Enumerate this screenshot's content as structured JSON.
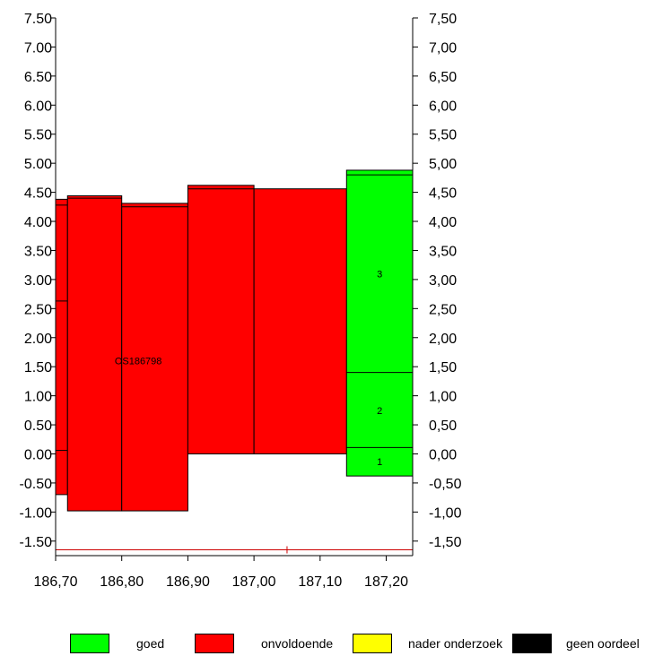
{
  "chart_data": {
    "type": "bar",
    "title": "",
    "xlabel": "",
    "ylabel": "",
    "xlim": [
      186.7,
      187.24
    ],
    "ylim": [
      -1.75,
      7.5
    ],
    "x_ticks": [
      186.7,
      186.8,
      186.9,
      187.0,
      187.1,
      187.2
    ],
    "x_tick_labels": [
      "186,70",
      "186,80",
      "186,90",
      "187,00",
      "187,10",
      "187,20"
    ],
    "y_ticks": [
      -1.5,
      -1.0,
      -0.5,
      0.0,
      0.5,
      1.0,
      1.5,
      2.0,
      2.5,
      3.0,
      3.5,
      4.0,
      4.5,
      5.0,
      5.5,
      6.0,
      6.5,
      7.0,
      7.5
    ],
    "y_tick_labels_left": [
      "-1.50",
      "-1.00",
      "-0.50",
      "0.00",
      "0.50",
      "1.00",
      "1.50",
      "2.00",
      "2.50",
      "3.00",
      "3.50",
      "4.00",
      "4.50",
      "5.00",
      "5.50",
      "6.00",
      "6.50",
      "7.00",
      "7.50"
    ],
    "y_tick_labels_right": [
      "-1,50",
      "-1,00",
      "-0,50",
      "0,00",
      "0,50",
      "1,00",
      "1,50",
      "2,00",
      "2,50",
      "3,00",
      "3,50",
      "4,00",
      "4,50",
      "5,00",
      "5,50",
      "6,00",
      "6,50",
      "7,00",
      "7,50"
    ],
    "grid": false,
    "legend_position": "bottom",
    "colors": {
      "goed": "#00ff00",
      "onvoldoende": "#ff0000",
      "nader_onderzoek": "#ffff00",
      "geen_oordeel": "#000000",
      "outline": "#000000",
      "baseline": "#cc0000"
    },
    "blocks": [
      {
        "x0": 186.7,
        "x1": 186.718,
        "y0": -0.7,
        "y1": 4.38,
        "class": "onvoldoende",
        "dividers": [
          4.28,
          2.63,
          0.06
        ]
      },
      {
        "x0": 186.718,
        "x1": 186.8,
        "y0": -0.98,
        "y1": 4.44,
        "class": "onvoldoende",
        "dividers": [
          4.4
        ]
      },
      {
        "x0": 186.8,
        "x1": 186.9,
        "y0": -0.98,
        "y1": 4.31,
        "class": "onvoldoende",
        "dividers": [
          4.25
        ]
      },
      {
        "x0": 186.9,
        "x1": 187.0,
        "y0": 0.0,
        "y1": 4.62,
        "class": "onvoldoende",
        "dividers": [
          4.56
        ]
      },
      {
        "x0": 187.0,
        "x1": 187.14,
        "y0": 0.0,
        "y1": 4.56,
        "class": "onvoldoende",
        "dividers": []
      },
      {
        "x0": 187.14,
        "x1": 187.24,
        "y0": -0.38,
        "y1": 4.88,
        "class": "goed",
        "dividers": [
          4.8,
          1.4,
          0.11
        ]
      }
    ],
    "annotations": [
      {
        "text": "OS186798",
        "x": 186.825,
        "y": 1.6
      },
      {
        "text": "3",
        "x": 187.19,
        "y": 3.1
      },
      {
        "text": "2",
        "x": 187.19,
        "y": 0.75
      },
      {
        "text": "1",
        "x": 187.19,
        "y": -0.13
      }
    ],
    "baseline": {
      "y": -1.65,
      "x0": 186.7,
      "x1": 187.24,
      "marker_x": 187.05
    }
  },
  "legend": [
    {
      "label": "goed",
      "color": "#00ff00"
    },
    {
      "label": "onvoldoende",
      "color": "#ff0000"
    },
    {
      "label": "nader onderzoek",
      "color": "#ffff00"
    },
    {
      "label": "geen oordeel",
      "color": "#000000"
    }
  ]
}
